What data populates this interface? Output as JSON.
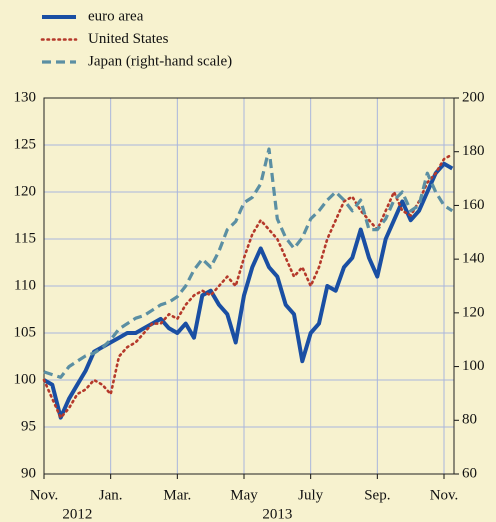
{
  "chart_data": {
    "type": "line",
    "x": [
      0,
      0.25,
      0.5,
      0.75,
      1,
      1.25,
      1.5,
      1.75,
      2,
      2.25,
      2.5,
      2.75,
      3,
      3.25,
      3.5,
      3.75,
      4,
      4.25,
      4.5,
      4.75,
      5,
      5.25,
      5.5,
      5.75,
      6,
      6.25,
      6.5,
      6.75,
      7,
      7.25,
      7.5,
      7.75,
      8,
      8.25,
      8.5,
      8.75,
      9,
      9.25,
      9.5,
      9.75,
      10,
      10.25,
      10.5,
      10.75,
      11,
      11.25,
      11.5,
      11.75,
      12,
      12.25
    ],
    "series": [
      {
        "name": "euro area",
        "color": "#1a4fa3",
        "style": "solid",
        "axis": "y",
        "values": [
          100,
          99.5,
          96,
          98,
          99.5,
          101,
          103,
          103.5,
          104,
          104.5,
          105,
          105,
          105.5,
          106,
          106.5,
          105.5,
          105,
          106,
          104.5,
          109,
          109.5,
          108,
          107,
          104,
          109,
          112,
          114,
          112,
          111,
          108,
          107,
          102,
          105,
          106,
          110,
          109.5,
          112,
          113,
          116,
          113,
          111,
          115,
          117,
          119,
          117,
          118,
          120,
          122,
          123,
          122.5
        ]
      },
      {
        "name": "United States",
        "color": "#b5392b",
        "style": "dotted",
        "axis": "y",
        "values": [
          100,
          98,
          96,
          97,
          98.5,
          99,
          100,
          99.5,
          98.5,
          102.5,
          103.5,
          104,
          105,
          106,
          106,
          107,
          106.5,
          108,
          109,
          109.5,
          109,
          110,
          111,
          110,
          113,
          115.5,
          117,
          116,
          115,
          113,
          111,
          112,
          110,
          112,
          115,
          117,
          119,
          119.5,
          118,
          117,
          116,
          118,
          120,
          118,
          117.5,
          119,
          121,
          122,
          123.5,
          124
        ]
      },
      {
        "name": "Japan (right-hand scale)",
        "color": "#5b8fa3",
        "style": "dashed",
        "axis": "y2",
        "values": [
          98,
          97,
          96,
          100,
          102,
          104,
          105,
          107,
          110,
          114,
          116,
          118,
          119,
          121,
          123,
          124,
          126,
          130,
          136,
          140,
          137,
          143,
          151,
          154,
          161,
          163,
          168,
          181,
          155,
          148,
          144,
          148,
          155,
          158,
          162,
          165,
          162,
          158,
          162,
          151,
          151,
          155,
          162,
          165,
          158,
          160,
          172,
          165,
          160,
          158
        ]
      }
    ],
    "xlim": [
      0,
      12.3
    ],
    "xticks": [
      {
        "value": 0,
        "label": "Nov."
      },
      {
        "value": 2,
        "label": "Jan."
      },
      {
        "value": 4,
        "label": "Mar."
      },
      {
        "value": 6,
        "label": "May"
      },
      {
        "value": 8,
        "label": "July"
      },
      {
        "value": 10,
        "label": "Sep."
      },
      {
        "value": 12,
        "label": "Nov."
      }
    ],
    "year_labels": [
      {
        "value": 1,
        "label": "2012"
      },
      {
        "value": 7,
        "label": "2013"
      }
    ],
    "ylim": [
      90,
      130
    ],
    "yticks": [
      90,
      95,
      100,
      105,
      110,
      115,
      120,
      125,
      130
    ],
    "y2lim": [
      60,
      200
    ],
    "y2ticks": [
      60,
      80,
      100,
      120,
      140,
      160,
      180,
      200
    ],
    "grid": true
  }
}
